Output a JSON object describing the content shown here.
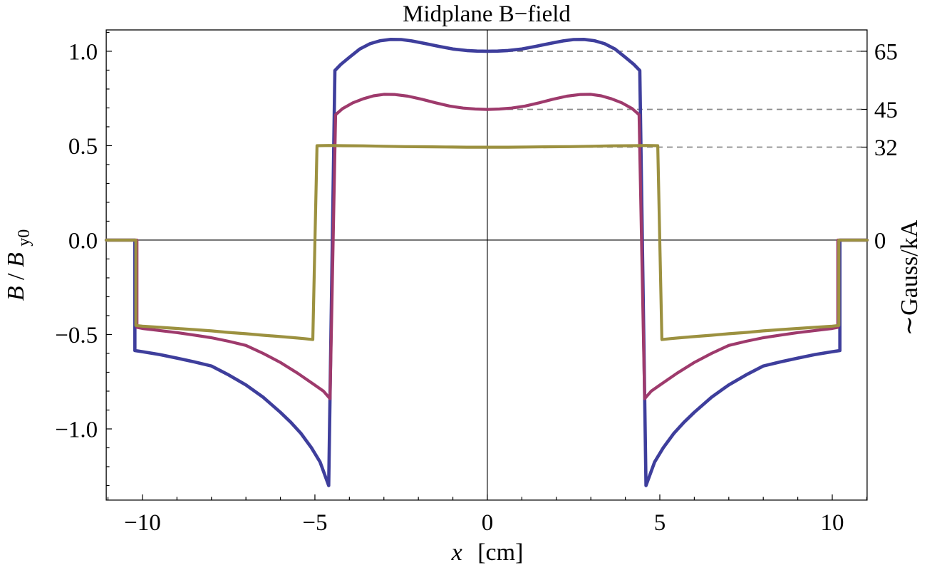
{
  "title": "Midplane B−field",
  "axes": {
    "left": {
      "label_parts": {
        "b1": "B",
        "slash": "/",
        "b2": "B",
        "sub": "y0"
      },
      "tick_labels": [
        "1.0",
        "0.5",
        "0.0",
        "−0.5",
        "−1.0"
      ]
    },
    "bottom": {
      "label_parts": {
        "var": "x",
        "unit": "[cm]"
      },
      "tick_labels": [
        "−10",
        "−5",
        "0",
        "5",
        "10"
      ]
    },
    "right": {
      "label": "∼Gauss/kA",
      "tick_labels": [
        "65",
        "45",
        "32",
        "0"
      ]
    }
  },
  "chart_data": {
    "type": "line",
    "title": "Midplane B−field",
    "xlabel": "x [cm]",
    "ylabel": "B/B_y0",
    "ylabel_right": "~Gauss/kA",
    "xlim": [
      -11.05,
      11.01
    ],
    "ylim": [
      -1.377,
      1.113
    ],
    "grid": false,
    "legend": "none (curves identified by right-axis values 65, 45, 32 Gauss/kA)",
    "x_major_ticks": [
      -10,
      -5,
      0,
      5,
      10
    ],
    "x_major_labels": [
      "−10",
      "−5",
      "0",
      "5",
      "10"
    ],
    "x_minor_step": 1,
    "y_major_ticks": [
      1.0,
      0.5,
      0.0,
      -0.5,
      -1.0
    ],
    "y_major_labels": [
      "1.0",
      "0.5",
      "0.0",
      "−0.5",
      "−1.0"
    ],
    "y_minor_step": 0.1,
    "y_minor_range": [
      -1.3,
      1.1
    ],
    "right_axis_ticks": [
      {
        "value": 1.0,
        "label": "65"
      },
      {
        "value": 0.6923,
        "label": "45"
      },
      {
        "value": 0.4923,
        "label": "32"
      },
      {
        "value": 0.0,
        "label": "0"
      }
    ],
    "reference_lines": {
      "style": "dashed",
      "color": "#8a8a8a",
      "x_start": 0,
      "levels": [
        1.0,
        0.6923,
        0.4923
      ]
    },
    "axis_color": "#000000",
    "series": [
      {
        "name": "65",
        "color": "#3E3E9C",
        "width": 4.6,
        "points": [
          [
            -11.05,
            0
          ],
          [
            -10.22,
            0
          ],
          [
            -10.22,
            -0.585
          ],
          [
            -10.0,
            -0.591
          ],
          [
            -9.5,
            -0.606
          ],
          [
            -9.0,
            -0.625
          ],
          [
            -8.5,
            -0.645
          ],
          [
            -8.0,
            -0.667
          ],
          [
            -7.5,
            -0.714
          ],
          [
            -7.0,
            -0.767
          ],
          [
            -6.5,
            -0.832
          ],
          [
            -6.0,
            -0.912
          ],
          [
            -5.7,
            -0.965
          ],
          [
            -5.4,
            -1.025
          ],
          [
            -5.1,
            -1.1
          ],
          [
            -4.85,
            -1.175
          ],
          [
            -4.6,
            -1.3
          ],
          [
            -4.42,
            0.898
          ],
          [
            -4.25,
            0.93
          ],
          [
            -4.0,
            0.968
          ],
          [
            -3.7,
            1.012
          ],
          [
            -3.4,
            1.04
          ],
          [
            -3.1,
            1.056
          ],
          [
            -2.8,
            1.063
          ],
          [
            -2.5,
            1.062
          ],
          [
            -2.2,
            1.055
          ],
          [
            -1.8,
            1.041
          ],
          [
            -1.4,
            1.026
          ],
          [
            -1.0,
            1.012
          ],
          [
            -0.6,
            1.004
          ],
          [
            -0.3,
            1.001
          ],
          [
            0,
            1.0
          ],
          [
            0.3,
            1.001
          ],
          [
            0.6,
            1.004
          ],
          [
            1.0,
            1.012
          ],
          [
            1.4,
            1.026
          ],
          [
            1.8,
            1.041
          ],
          [
            2.2,
            1.055
          ],
          [
            2.5,
            1.062
          ],
          [
            2.8,
            1.063
          ],
          [
            3.1,
            1.056
          ],
          [
            3.4,
            1.04
          ],
          [
            3.7,
            1.012
          ],
          [
            4.0,
            0.968
          ],
          [
            4.25,
            0.93
          ],
          [
            4.42,
            0.898
          ],
          [
            4.6,
            -1.3
          ],
          [
            4.85,
            -1.175
          ],
          [
            5.1,
            -1.1
          ],
          [
            5.4,
            -1.025
          ],
          [
            5.7,
            -0.965
          ],
          [
            6.0,
            -0.912
          ],
          [
            6.5,
            -0.832
          ],
          [
            7.0,
            -0.767
          ],
          [
            7.5,
            -0.714
          ],
          [
            8.0,
            -0.667
          ],
          [
            8.5,
            -0.645
          ],
          [
            9.0,
            -0.625
          ],
          [
            9.5,
            -0.606
          ],
          [
            10.0,
            -0.591
          ],
          [
            10.22,
            -0.585
          ],
          [
            10.22,
            0
          ],
          [
            11.01,
            0
          ]
        ]
      },
      {
        "name": "45",
        "color": "#9E3A6C",
        "width": 4.2,
        "points": [
          [
            -11.05,
            0
          ],
          [
            -10.16,
            0
          ],
          [
            -10.16,
            -0.462
          ],
          [
            -10.0,
            -0.468
          ],
          [
            -9.5,
            -0.479
          ],
          [
            -9.0,
            -0.49
          ],
          [
            -8.5,
            -0.503
          ],
          [
            -8.0,
            -0.517
          ],
          [
            -7.5,
            -0.536
          ],
          [
            -7.0,
            -0.558
          ],
          [
            -6.5,
            -0.6
          ],
          [
            -6.0,
            -0.648
          ],
          [
            -5.5,
            -0.705
          ],
          [
            -5.0,
            -0.768
          ],
          [
            -4.75,
            -0.8
          ],
          [
            -4.56,
            -0.84
          ],
          [
            -4.4,
            0.664
          ],
          [
            -4.2,
            0.696
          ],
          [
            -3.9,
            0.727
          ],
          [
            -3.6,
            0.748
          ],
          [
            -3.3,
            0.764
          ],
          [
            -3.0,
            0.772
          ],
          [
            -2.7,
            0.771
          ],
          [
            -2.3,
            0.762
          ],
          [
            -1.9,
            0.746
          ],
          [
            -1.5,
            0.727
          ],
          [
            -1.1,
            0.71
          ],
          [
            -0.7,
            0.699
          ],
          [
            -0.35,
            0.694
          ],
          [
            0,
            0.692
          ],
          [
            0.35,
            0.694
          ],
          [
            0.7,
            0.699
          ],
          [
            1.1,
            0.71
          ],
          [
            1.5,
            0.727
          ],
          [
            1.9,
            0.746
          ],
          [
            2.3,
            0.762
          ],
          [
            2.7,
            0.771
          ],
          [
            3.0,
            0.772
          ],
          [
            3.3,
            0.764
          ],
          [
            3.6,
            0.748
          ],
          [
            3.9,
            0.727
          ],
          [
            4.2,
            0.696
          ],
          [
            4.4,
            0.664
          ],
          [
            4.56,
            -0.84
          ],
          [
            4.75,
            -0.8
          ],
          [
            5.0,
            -0.768
          ],
          [
            5.5,
            -0.705
          ],
          [
            6.0,
            -0.648
          ],
          [
            6.5,
            -0.6
          ],
          [
            7.0,
            -0.558
          ],
          [
            7.5,
            -0.536
          ],
          [
            8.0,
            -0.517
          ],
          [
            8.5,
            -0.503
          ],
          [
            9.0,
            -0.49
          ],
          [
            9.5,
            -0.479
          ],
          [
            10.0,
            -0.468
          ],
          [
            10.16,
            -0.462
          ],
          [
            10.16,
            0
          ],
          [
            11.01,
            0
          ]
        ]
      },
      {
        "name": "32",
        "color": "#9C9140",
        "width": 4.2,
        "points": [
          [
            -11.05,
            0
          ],
          [
            -10.19,
            0
          ],
          [
            -10.19,
            -0.452
          ],
          [
            -10.0,
            -0.456
          ],
          [
            -9.5,
            -0.462
          ],
          [
            -9.0,
            -0.468
          ],
          [
            -8.5,
            -0.474
          ],
          [
            -8.0,
            -0.481
          ],
          [
            -7.5,
            -0.489
          ],
          [
            -7.0,
            -0.496
          ],
          [
            -6.5,
            -0.504
          ],
          [
            -6.0,
            -0.511
          ],
          [
            -5.6,
            -0.517
          ],
          [
            -5.3,
            -0.522
          ],
          [
            -5.06,
            -0.527
          ],
          [
            -4.94,
            0.5
          ],
          [
            -4.6,
            0.501
          ],
          [
            -4.2,
            0.5
          ],
          [
            -3.6,
            0.499
          ],
          [
            -3.0,
            0.497
          ],
          [
            -2.4,
            0.495
          ],
          [
            -1.8,
            0.494
          ],
          [
            -1.2,
            0.493
          ],
          [
            -0.6,
            0.492
          ],
          [
            0,
            0.492
          ],
          [
            0.6,
            0.492
          ],
          [
            1.2,
            0.493
          ],
          [
            1.8,
            0.494
          ],
          [
            2.4,
            0.495
          ],
          [
            3.0,
            0.497
          ],
          [
            3.6,
            0.499
          ],
          [
            4.2,
            0.5
          ],
          [
            4.6,
            0.501
          ],
          [
            4.94,
            0.5
          ],
          [
            5.06,
            -0.527
          ],
          [
            5.3,
            -0.522
          ],
          [
            5.6,
            -0.517
          ],
          [
            6.0,
            -0.511
          ],
          [
            6.5,
            -0.504
          ],
          [
            7.0,
            -0.496
          ],
          [
            7.5,
            -0.489
          ],
          [
            8.0,
            -0.481
          ],
          [
            8.5,
            -0.474
          ],
          [
            9.0,
            -0.468
          ],
          [
            9.5,
            -0.462
          ],
          [
            10.0,
            -0.456
          ],
          [
            10.19,
            -0.452
          ],
          [
            10.19,
            0
          ],
          [
            11.01,
            0
          ]
        ]
      }
    ]
  }
}
